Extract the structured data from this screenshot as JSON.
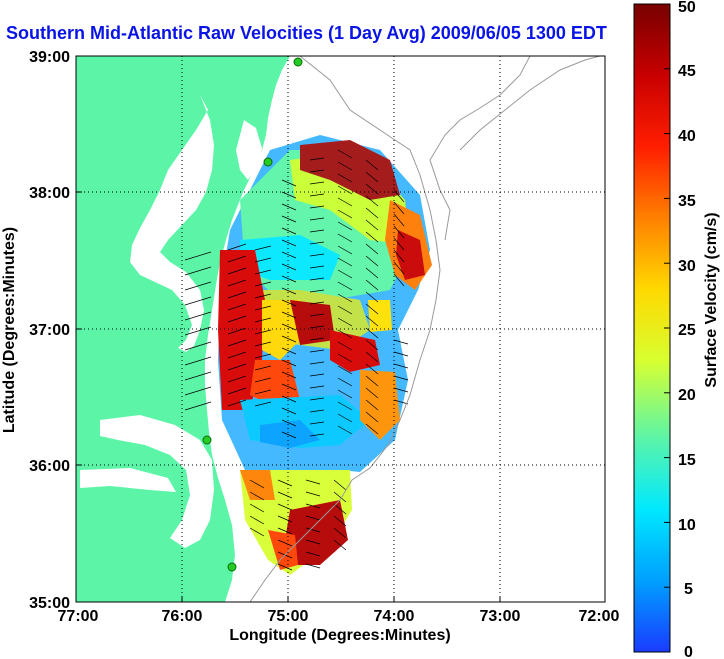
{
  "title": "Southern Mid-Atlantic Raw Velocities (1 Day Avg) 2009/06/05 1300 EDT",
  "map": {
    "xlabel": "Longitude (Degrees:Minutes)",
    "ylabel": "Latitude (Degrees:Minutes)",
    "x_ticks": [
      "77:00",
      "76:00",
      "75:00",
      "74:00",
      "73:00",
      "72:00"
    ],
    "y_ticks": [
      "39:00",
      "38:00",
      "37:00",
      "36:00",
      "35:00"
    ],
    "lon_range": [
      -77,
      -72
    ],
    "lat_range": [
      35,
      39
    ],
    "grid": true,
    "land_color": "#5cf5a8",
    "water_color": "#ffffff",
    "vector_color": "#000000",
    "station_color": "#22cc22"
  },
  "colorbar": {
    "label": "Surface Velocity (cm/s)",
    "ticks": [
      "50",
      "45",
      "40",
      "35",
      "30",
      "25",
      "20",
      "15",
      "10",
      "5",
      "0"
    ],
    "range": [
      0,
      50
    ],
    "colors": [
      "#1a3cff",
      "#00a0ff",
      "#00e8ff",
      "#5cf5a8",
      "#d8ff30",
      "#ffd800",
      "#ff8000",
      "#ff1e00",
      "#c80000",
      "#780000"
    ]
  }
}
